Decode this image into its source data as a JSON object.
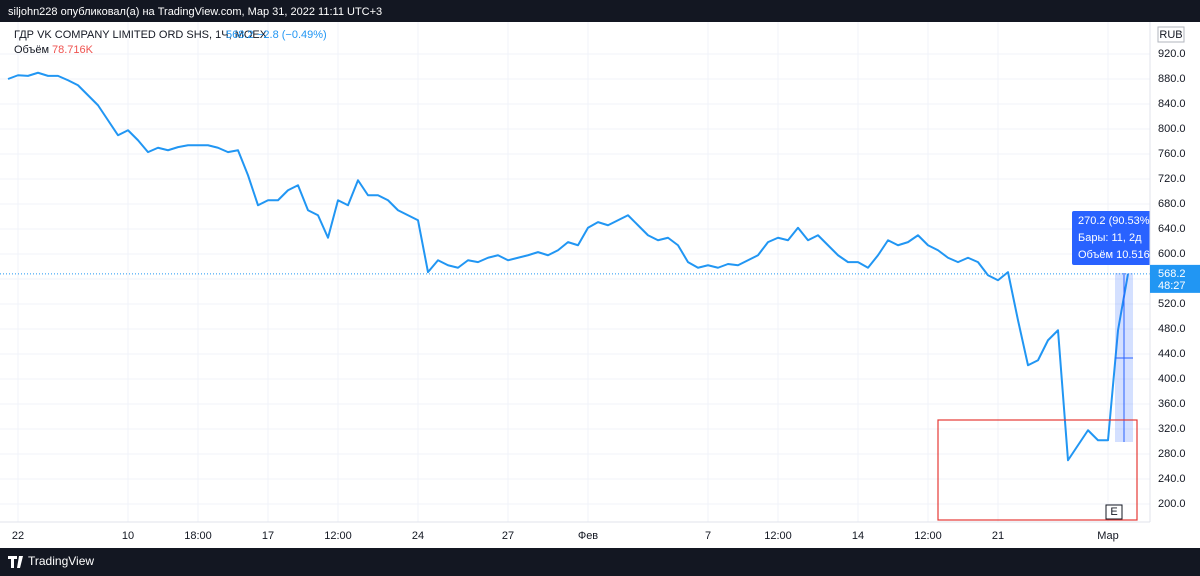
{
  "header": "siljohn228 опубликовал(а) на TradingView.com, Мар 31, 2022 11:11 UTC+3",
  "footer": "TradingView",
  "chart_data": {
    "type": "line",
    "title": "ГДР VK COMPANY LIMITED ORD SHS, 1Ч, MOEX",
    "change": "−2.8 (−0.49%)",
    "volume_label": "Объём",
    "volume_value": "78.716K",
    "currency": "RUB",
    "countdown": "48:27",
    "measure": {
      "change": "270.2 (90.53%)",
      "bars": "Бары: 11, 2д",
      "volume": "Объём 10.516"
    },
    "event": "E",
    "grid": true,
    "ylim": [
      170,
      970
    ],
    "yticks": [
      {
        "value": 200,
        "label": "200.0"
      },
      {
        "value": 240,
        "label": "240.0"
      },
      {
        "value": 280,
        "label": "280.0"
      },
      {
        "value": 320,
        "label": "320.0"
      },
      {
        "value": 360,
        "label": "360.0"
      },
      {
        "value": 400,
        "label": "400.0"
      },
      {
        "value": 440,
        "label": "440.0"
      },
      {
        "value": 480,
        "label": "480.0"
      },
      {
        "value": 520,
        "label": "520.0"
      },
      {
        "value": 560,
        "label": "560.0"
      },
      {
        "value": 600,
        "label": "600.0"
      },
      {
        "value": 640,
        "label": "640.0"
      },
      {
        "value": 680,
        "label": "680.0"
      },
      {
        "value": 720,
        "label": "720.0"
      },
      {
        "value": 760,
        "label": "760.0"
      },
      {
        "value": 800,
        "label": "800.0"
      },
      {
        "value": 840,
        "label": "840.0"
      },
      {
        "value": 880,
        "label": "880.0"
      },
      {
        "value": 920,
        "label": "920.0"
      }
    ],
    "categories": [
      null,
      "22",
      null,
      null,
      null,
      null,
      null,
      null,
      null,
      null,
      null,
      null,
      "10",
      null,
      null,
      null,
      null,
      null,
      null,
      "18:00",
      null,
      null,
      null,
      null,
      null,
      null,
      "17",
      null,
      null,
      null,
      null,
      null,
      null,
      "12:00",
      null,
      null,
      null,
      null,
      null,
      null,
      null,
      "24",
      null,
      null,
      null,
      null,
      null,
      null,
      null,
      null,
      "27",
      null,
      null,
      null,
      null,
      null,
      null,
      null,
      "Фев",
      null,
      null,
      null,
      null,
      null,
      null,
      null,
      null,
      null,
      null,
      null,
      "7",
      null,
      null,
      null,
      null,
      null,
      null,
      "12:00",
      null,
      null,
      null,
      null,
      null,
      null,
      null,
      "14",
      null,
      null,
      null,
      null,
      null,
      null,
      "12:00",
      null,
      null,
      null,
      null,
      null,
      null,
      "21",
      null,
      null,
      null,
      null,
      null,
      null,
      null,
      null,
      null,
      null,
      "Мар",
      null,
      null
    ],
    "series": [
      {
        "name": "ГДР VK COMPANY LIMITED ORD SHS",
        "color": "#2196f3",
        "values": [
          880,
          886,
          885,
          890,
          885,
          885,
          878,
          870,
          854,
          838,
          814,
          790,
          798,
          782,
          763,
          770,
          766,
          771,
          774,
          774,
          774,
          770,
          763,
          766,
          726,
          678,
          686,
          686,
          702,
          710,
          670,
          662,
          626,
          686,
          678,
          718,
          694,
          694,
          686,
          670,
          662,
          654,
          571,
          590,
          582,
          578,
          590,
          587,
          594,
          598,
          590,
          594,
          598,
          603,
          598,
          606,
          619,
          614,
          642,
          651,
          646,
          654,
          662,
          646,
          630,
          622,
          626,
          614,
          587,
          578,
          582,
          578,
          584,
          582,
          590,
          598,
          619,
          626,
          622,
          642,
          622,
          630,
          614,
          598,
          587,
          587,
          578,
          598,
          622,
          614,
          619,
          630,
          614,
          606,
          594,
          587,
          594,
          587,
          566,
          558,
          571,
          494,
          422,
          430,
          462,
          478,
          270,
          294,
          318,
          302,
          302,
          478,
          568.2
        ]
      }
    ]
  }
}
